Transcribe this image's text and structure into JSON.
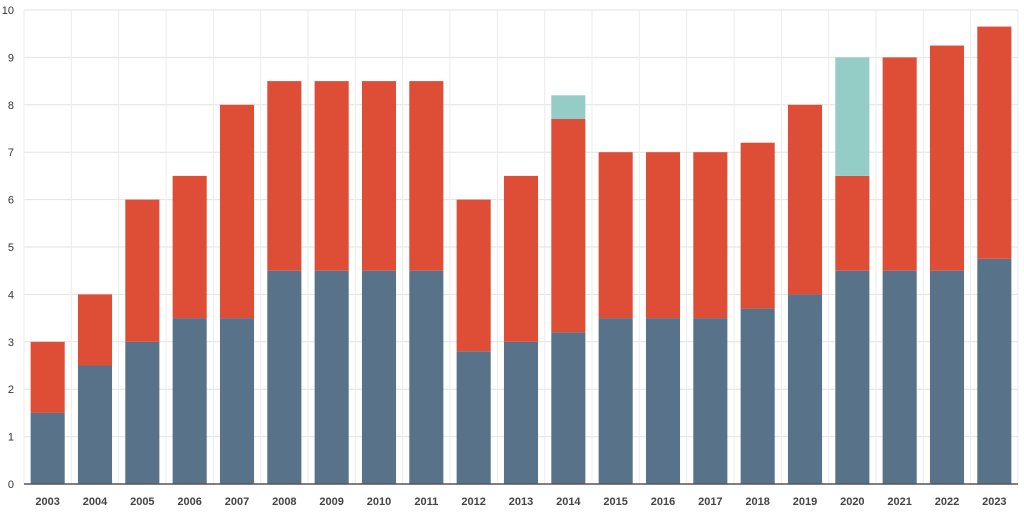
{
  "chart_data": {
    "type": "bar",
    "stacked": true,
    "title": "",
    "xlabel": "",
    "ylabel": "",
    "ylim": [
      0,
      10
    ],
    "yticks": [
      0,
      1,
      2,
      3,
      4,
      5,
      6,
      7,
      8,
      9,
      10
    ],
    "grid": true,
    "legend": "none",
    "categories": [
      "2003",
      "2004",
      "2005",
      "2006",
      "2007",
      "2008",
      "2009",
      "2010",
      "2011",
      "2012",
      "2013",
      "2014",
      "2015",
      "2016",
      "2017",
      "2018",
      "2019",
      "2020",
      "2021",
      "2022",
      "2023"
    ],
    "series": [
      {
        "color": "#587389",
        "values": [
          1.5,
          2.5,
          3.0,
          3.5,
          3.5,
          4.5,
          4.5,
          4.5,
          4.5,
          2.8,
          3.0,
          3.2,
          3.5,
          3.5,
          3.5,
          3.7,
          4.0,
          4.5,
          4.5,
          4.5,
          4.75
        ]
      },
      {
        "color": "#de4d35",
        "values": [
          1.5,
          1.5,
          3.0,
          3.0,
          4.5,
          4.0,
          4.0,
          4.0,
          4.0,
          3.2,
          3.5,
          4.5,
          3.5,
          3.5,
          3.5,
          3.5,
          4.0,
          2.0,
          4.5,
          4.75,
          4.9
        ]
      },
      {
        "color": "#93cdc6",
        "values": [
          0,
          0,
          0,
          0,
          0,
          0,
          0,
          0,
          0,
          0,
          0,
          0.5,
          0,
          0,
          0,
          0,
          0,
          2.5,
          0,
          0,
          0
        ]
      }
    ]
  }
}
